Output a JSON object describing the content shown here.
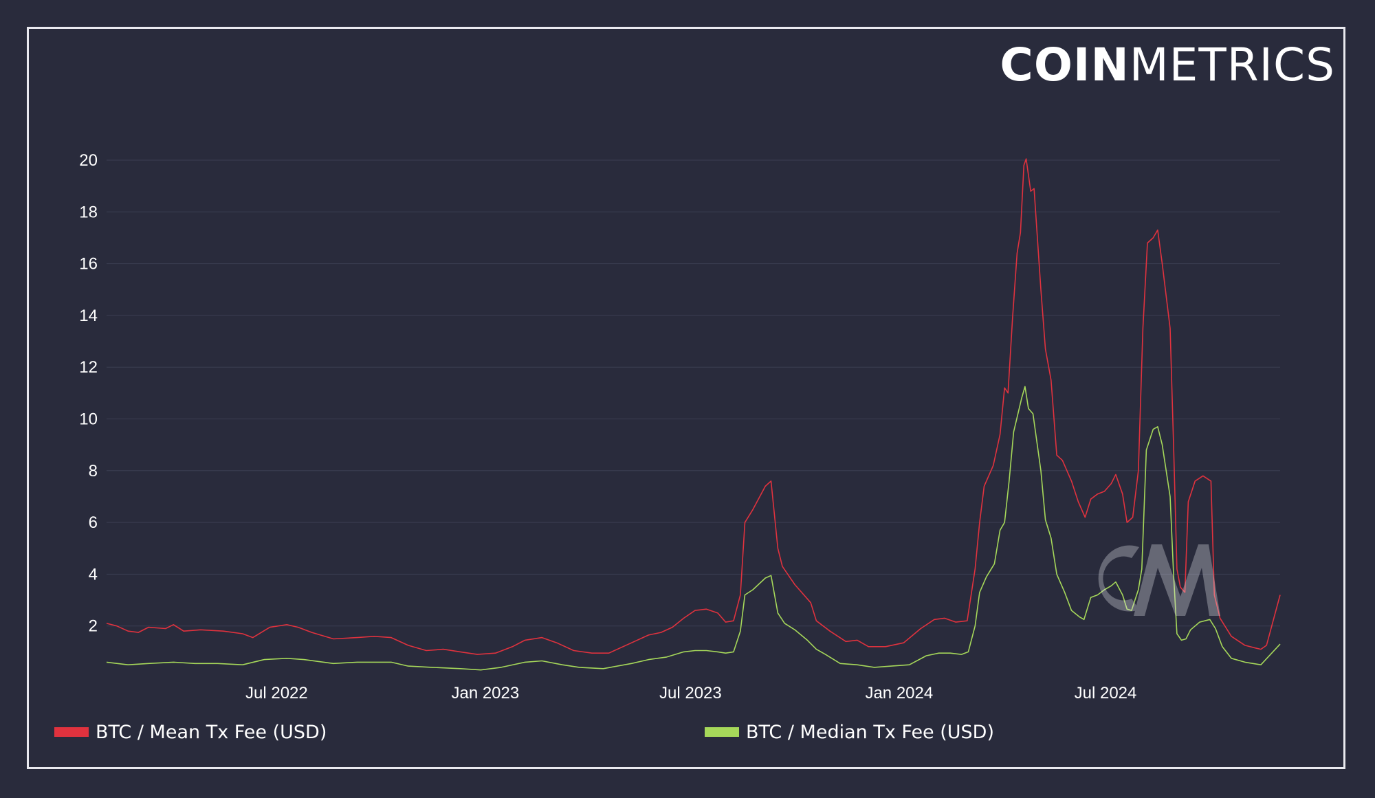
{
  "brand": {
    "bold": "COIN",
    "light": "METRICS"
  },
  "legend": [
    {
      "label": "BTC / Mean Tx Fee (USD)",
      "color": "#e0323e"
    },
    {
      "label": "BTC / Median Tx Fee (USD)",
      "color": "#a6d85a"
    }
  ],
  "watermark": {
    "icon": "cm-logo-watermark"
  },
  "chart_data": {
    "type": "line",
    "x_axis": {
      "type": "date",
      "range": [
        "2022-02-01",
        "2024-12-02"
      ],
      "tick_labels": [
        {
          "label": "Jul 2022",
          "date": "2022-07-01"
        },
        {
          "label": "Jan 2023",
          "date": "2023-01-01"
        },
        {
          "label": "Jul 2023",
          "date": "2023-07-01"
        },
        {
          "label": "Jan 2024",
          "date": "2024-01-01"
        },
        {
          "label": "Jul 2024",
          "date": "2024-07-01"
        }
      ]
    },
    "y_axis": {
      "ylim": [
        0,
        20.5
      ],
      "ticks": [
        2,
        4,
        6,
        8,
        10,
        12,
        14,
        16,
        18,
        20
      ]
    },
    "grid": true,
    "legend_position": "bottom",
    "series": [
      {
        "name": "BTC / Mean Tx Fee (USD)",
        "color": "#e0323e",
        "points": [
          [
            "2022-02-01",
            2.1
          ],
          [
            "2022-02-10",
            2.0
          ],
          [
            "2022-02-20",
            1.8
          ],
          [
            "2022-03-01",
            1.75
          ],
          [
            "2022-03-10",
            1.95
          ],
          [
            "2022-03-25",
            1.9
          ],
          [
            "2022-04-01",
            2.05
          ],
          [
            "2022-04-10",
            1.8
          ],
          [
            "2022-04-25",
            1.85
          ],
          [
            "2022-05-15",
            1.8
          ],
          [
            "2022-06-01",
            1.7
          ],
          [
            "2022-06-10",
            1.55
          ],
          [
            "2022-06-25",
            1.95
          ],
          [
            "2022-07-10",
            2.05
          ],
          [
            "2022-07-20",
            1.95
          ],
          [
            "2022-08-01",
            1.75
          ],
          [
            "2022-08-20",
            1.5
          ],
          [
            "2022-09-10",
            1.55
          ],
          [
            "2022-09-25",
            1.6
          ],
          [
            "2022-10-10",
            1.55
          ],
          [
            "2022-10-25",
            1.25
          ],
          [
            "2022-11-10",
            1.05
          ],
          [
            "2022-11-25",
            1.1
          ],
          [
            "2022-12-10",
            1.0
          ],
          [
            "2022-12-25",
            0.9
          ],
          [
            "2023-01-10",
            0.95
          ],
          [
            "2023-01-25",
            1.2
          ],
          [
            "2023-02-05",
            1.45
          ],
          [
            "2023-02-20",
            1.55
          ],
          [
            "2023-03-05",
            1.35
          ],
          [
            "2023-03-20",
            1.05
          ],
          [
            "2023-04-05",
            0.95
          ],
          [
            "2023-04-20",
            0.95
          ],
          [
            "2023-05-10",
            1.35
          ],
          [
            "2023-05-25",
            1.65
          ],
          [
            "2023-06-05",
            1.75
          ],
          [
            "2023-06-15",
            1.95
          ],
          [
            "2023-06-25",
            2.3
          ],
          [
            "2023-07-05",
            2.6
          ],
          [
            "2023-07-15",
            2.65
          ],
          [
            "2023-07-25",
            2.5
          ],
          [
            "2023-08-01",
            2.15
          ],
          [
            "2023-08-08",
            2.2
          ],
          [
            "2023-08-14",
            3.2
          ],
          [
            "2023-08-18",
            6.0
          ],
          [
            "2023-08-25",
            6.5
          ],
          [
            "2023-09-05",
            7.4
          ],
          [
            "2023-09-10",
            7.6
          ],
          [
            "2023-09-16",
            5.0
          ],
          [
            "2023-09-20",
            4.3
          ],
          [
            "2023-10-01",
            3.6
          ],
          [
            "2023-10-15",
            2.9
          ],
          [
            "2023-10-20",
            2.2
          ],
          [
            "2023-11-01",
            1.8
          ],
          [
            "2023-11-15",
            1.4
          ],
          [
            "2023-11-25",
            1.45
          ],
          [
            "2023-12-05",
            1.2
          ],
          [
            "2023-12-20",
            1.2
          ],
          [
            "2024-01-05",
            1.35
          ],
          [
            "2024-01-20",
            1.9
          ],
          [
            "2024-02-01",
            2.25
          ],
          [
            "2024-02-10",
            2.3
          ],
          [
            "2024-02-20",
            2.15
          ],
          [
            "2024-03-01",
            2.2
          ],
          [
            "2024-03-08",
            4.2
          ],
          [
            "2024-03-12",
            6.0
          ],
          [
            "2024-03-16",
            7.4
          ],
          [
            "2024-03-24",
            8.2
          ],
          [
            "2024-03-30",
            9.4
          ],
          [
            "2024-04-03",
            11.2
          ],
          [
            "2024-04-06",
            11.0
          ],
          [
            "2024-04-10",
            13.9
          ],
          [
            "2024-04-14",
            16.4
          ],
          [
            "2024-04-17",
            17.2
          ],
          [
            "2024-04-20",
            19.8
          ],
          [
            "2024-04-22",
            20.05
          ],
          [
            "2024-04-26",
            18.8
          ],
          [
            "2024-04-29",
            18.9
          ],
          [
            "2024-05-05",
            15.0
          ],
          [
            "2024-05-09",
            12.7
          ],
          [
            "2024-05-14",
            11.5
          ],
          [
            "2024-05-19",
            8.6
          ],
          [
            "2024-05-24",
            8.4
          ],
          [
            "2024-06-01",
            7.6
          ],
          [
            "2024-06-07",
            6.8
          ],
          [
            "2024-06-13",
            6.2
          ],
          [
            "2024-06-18",
            6.9
          ],
          [
            "2024-06-24",
            7.1
          ],
          [
            "2024-06-30",
            7.2
          ],
          [
            "2024-07-06",
            7.5
          ],
          [
            "2024-07-10",
            7.85
          ],
          [
            "2024-07-16",
            7.1
          ],
          [
            "2024-07-20",
            6.0
          ],
          [
            "2024-07-25",
            6.2
          ],
          [
            "2024-07-30",
            8.0
          ],
          [
            "2024-08-03",
            13.5
          ],
          [
            "2024-08-07",
            16.8
          ],
          [
            "2024-08-12",
            17.0
          ],
          [
            "2024-08-16",
            17.3
          ],
          [
            "2024-08-20",
            16.0
          ],
          [
            "2024-08-27",
            13.5
          ],
          [
            "2024-08-30",
            9.0
          ],
          [
            "2024-09-02",
            4.2
          ],
          [
            "2024-09-05",
            3.5
          ],
          [
            "2024-09-09",
            3.3
          ],
          [
            "2024-09-12",
            6.8
          ],
          [
            "2024-09-18",
            7.6
          ],
          [
            "2024-09-25",
            7.8
          ],
          [
            "2024-10-02",
            7.6
          ],
          [
            "2024-10-05",
            3.2
          ],
          [
            "2024-10-10",
            2.3
          ],
          [
            "2024-10-20",
            1.6
          ],
          [
            "2024-11-01",
            1.25
          ],
          [
            "2024-11-10",
            1.15
          ],
          [
            "2024-11-15",
            1.1
          ],
          [
            "2024-11-20",
            1.25
          ],
          [
            "2024-12-02",
            3.2
          ]
        ]
      },
      {
        "name": "BTC / Median Tx Fee (USD)",
        "color": "#a6d85a",
        "points": [
          [
            "2022-02-01",
            0.6
          ],
          [
            "2022-02-20",
            0.5
          ],
          [
            "2022-03-10",
            0.55
          ],
          [
            "2022-04-01",
            0.6
          ],
          [
            "2022-04-20",
            0.55
          ],
          [
            "2022-05-10",
            0.55
          ],
          [
            "2022-06-01",
            0.5
          ],
          [
            "2022-06-20",
            0.7
          ],
          [
            "2022-07-10",
            0.75
          ],
          [
            "2022-07-25",
            0.7
          ],
          [
            "2022-08-20",
            0.55
          ],
          [
            "2022-09-10",
            0.6
          ],
          [
            "2022-10-10",
            0.6
          ],
          [
            "2022-10-25",
            0.45
          ],
          [
            "2022-11-15",
            0.4
          ],
          [
            "2022-12-10",
            0.35
          ],
          [
            "2022-12-28",
            0.3
          ],
          [
            "2023-01-15",
            0.4
          ],
          [
            "2023-02-05",
            0.6
          ],
          [
            "2023-02-20",
            0.65
          ],
          [
            "2023-03-10",
            0.5
          ],
          [
            "2023-03-25",
            0.4
          ],
          [
            "2023-04-15",
            0.35
          ],
          [
            "2023-05-10",
            0.55
          ],
          [
            "2023-05-25",
            0.7
          ],
          [
            "2023-06-10",
            0.8
          ],
          [
            "2023-06-25",
            1.0
          ],
          [
            "2023-07-05",
            1.05
          ],
          [
            "2023-07-15",
            1.05
          ],
          [
            "2023-07-25",
            1.0
          ],
          [
            "2023-08-01",
            0.95
          ],
          [
            "2023-08-08",
            1.0
          ],
          [
            "2023-08-14",
            1.8
          ],
          [
            "2023-08-18",
            3.2
          ],
          [
            "2023-08-25",
            3.4
          ],
          [
            "2023-09-05",
            3.85
          ],
          [
            "2023-09-10",
            3.95
          ],
          [
            "2023-09-16",
            2.5
          ],
          [
            "2023-09-22",
            2.1
          ],
          [
            "2023-10-01",
            1.85
          ],
          [
            "2023-10-12",
            1.45
          ],
          [
            "2023-10-20",
            1.1
          ],
          [
            "2023-10-28",
            0.9
          ],
          [
            "2023-11-10",
            0.55
          ],
          [
            "2023-11-25",
            0.5
          ],
          [
            "2023-12-10",
            0.4
          ],
          [
            "2023-12-25",
            0.45
          ],
          [
            "2024-01-10",
            0.5
          ],
          [
            "2024-01-25",
            0.85
          ],
          [
            "2024-02-05",
            0.95
          ],
          [
            "2024-02-15",
            0.95
          ],
          [
            "2024-02-25",
            0.9
          ],
          [
            "2024-03-02",
            1.0
          ],
          [
            "2024-03-08",
            2.0
          ],
          [
            "2024-03-12",
            3.3
          ],
          [
            "2024-03-18",
            3.9
          ],
          [
            "2024-03-25",
            4.4
          ],
          [
            "2024-03-30",
            5.7
          ],
          [
            "2024-04-03",
            6.0
          ],
          [
            "2024-04-07",
            7.6
          ],
          [
            "2024-04-11",
            9.5
          ],
          [
            "2024-04-18",
            10.8
          ],
          [
            "2024-04-21",
            11.25
          ],
          [
            "2024-04-24",
            10.4
          ],
          [
            "2024-04-28",
            10.2
          ],
          [
            "2024-05-05",
            8.0
          ],
          [
            "2024-05-09",
            6.1
          ],
          [
            "2024-05-14",
            5.4
          ],
          [
            "2024-05-19",
            4.0
          ],
          [
            "2024-05-26",
            3.3
          ],
          [
            "2024-06-01",
            2.6
          ],
          [
            "2024-06-08",
            2.35
          ],
          [
            "2024-06-12",
            2.25
          ],
          [
            "2024-06-18",
            3.1
          ],
          [
            "2024-06-24",
            3.2
          ],
          [
            "2024-06-30",
            3.4
          ],
          [
            "2024-07-06",
            3.55
          ],
          [
            "2024-07-10",
            3.7
          ],
          [
            "2024-07-16",
            3.2
          ],
          [
            "2024-07-20",
            2.65
          ],
          [
            "2024-07-24",
            2.6
          ],
          [
            "2024-07-30",
            3.4
          ],
          [
            "2024-08-02",
            4.2
          ],
          [
            "2024-08-06",
            8.8
          ],
          [
            "2024-08-12",
            9.6
          ],
          [
            "2024-08-16",
            9.7
          ],
          [
            "2024-08-20",
            9.0
          ],
          [
            "2024-08-27",
            7.0
          ],
          [
            "2024-08-30",
            4.0
          ],
          [
            "2024-09-02",
            1.7
          ],
          [
            "2024-09-06",
            1.45
          ],
          [
            "2024-09-10",
            1.5
          ],
          [
            "2024-09-14",
            1.85
          ],
          [
            "2024-09-22",
            2.15
          ],
          [
            "2024-10-01",
            2.25
          ],
          [
            "2024-10-06",
            1.9
          ],
          [
            "2024-10-12",
            1.2
          ],
          [
            "2024-10-20",
            0.75
          ],
          [
            "2024-11-01",
            0.6
          ],
          [
            "2024-11-15",
            0.5
          ],
          [
            "2024-12-02",
            1.3
          ]
        ]
      }
    ]
  }
}
